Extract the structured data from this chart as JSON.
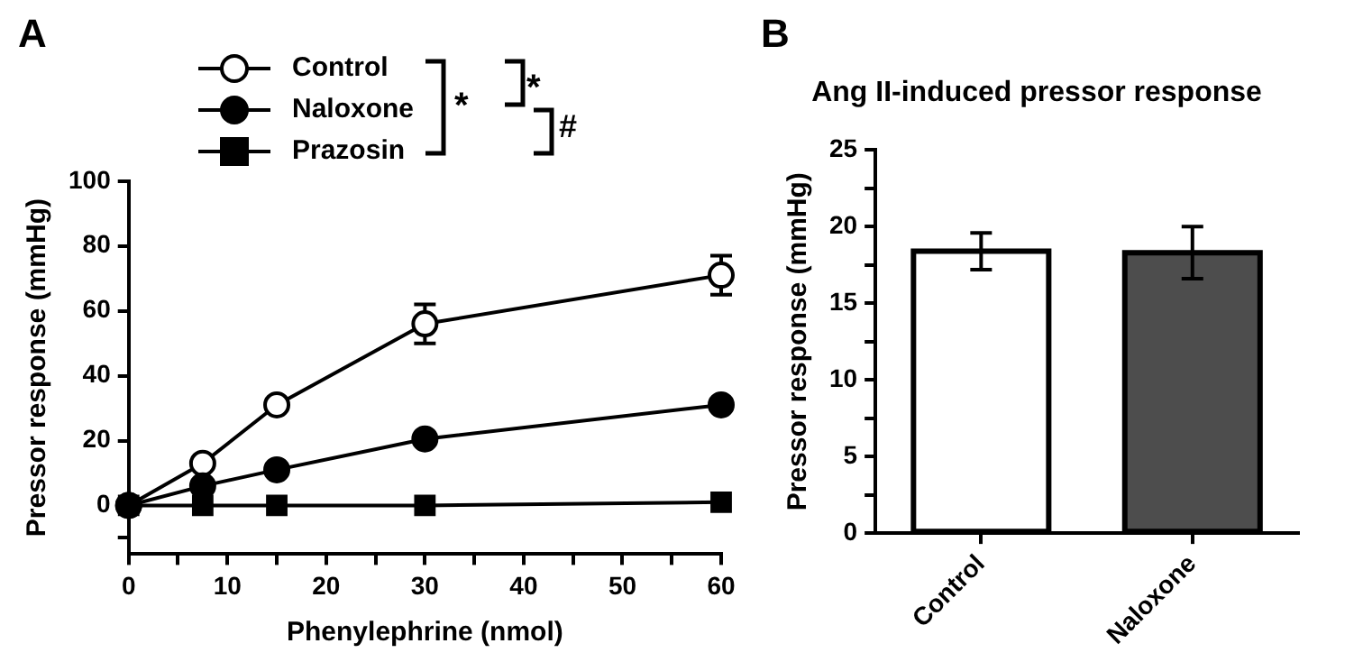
{
  "chart_data": [
    {
      "type": "line",
      "xlabel": "Phenylephrine (nmol)",
      "ylabel": "Pressor response (mmHg)",
      "x": [
        0,
        7.5,
        15,
        30,
        60
      ],
      "series": [
        {
          "name": "Control",
          "color": "#000000",
          "colors": [
            "#ffffff",
            "#ffffff",
            "#ffffff",
            "#ffffff",
            "#ffffff"
          ],
          "marker": "circle",
          "values": [
            0,
            13,
            31,
            56,
            71
          ],
          "errors": [
            null,
            null,
            null,
            6,
            6
          ]
        },
        {
          "name": "Naloxone",
          "color": "#000000",
          "marker": "circle",
          "values": [
            0,
            6,
            11,
            20.5,
            31
          ]
        },
        {
          "name": "Prazosin",
          "color": "#000000",
          "marker": "square",
          "values": [
            0,
            0,
            0,
            0,
            1
          ]
        }
      ],
      "xlim": [
        0,
        60
      ],
      "xticks": [
        0,
        {
          "value": 5,
          "label": null
        },
        10,
        {
          "value": 15,
          "label": null
        },
        20,
        {
          "value": 25,
          "label": null
        },
        30,
        {
          "value": 35,
          "label": null
        },
        40,
        {
          "value": 45,
          "label": null
        },
        50,
        {
          "value": 55,
          "label": null
        },
        60
      ],
      "ylim": [
        -15,
        100
      ],
      "yticks": [
        {
          "value": -10,
          "label": null
        },
        0,
        20,
        40,
        60,
        80,
        100
      ],
      "grid": false,
      "legend": "top",
      "line_style": "solid",
      "annotations": [
        "A",
        "*",
        "*",
        "#"
      ]
    },
    {
      "type": "bar",
      "title": "Ang II-induced pressor response",
      "ylabel": "Pressor response (mmHg)",
      "categories": [
        "Control",
        "Naloxone"
      ],
      "values": [
        18.4,
        18.3
      ],
      "errors": [
        1.2,
        1.7
      ],
      "colors": [
        "#ffffff",
        "#4d4d4d"
      ],
      "ylim": [
        0,
        25
      ],
      "yticks": [
        0,
        {
          "value": 2.5,
          "label": null
        },
        5,
        {
          "value": 7.5,
          "label": null
        },
        10,
        {
          "value": 12.5,
          "label": null
        },
        15,
        {
          "value": 17.5,
          "label": null
        },
        20,
        {
          "value": 22.5,
          "label": null
        },
        25
      ],
      "grid": false,
      "legend": false,
      "annotations": [
        "B"
      ]
    }
  ]
}
